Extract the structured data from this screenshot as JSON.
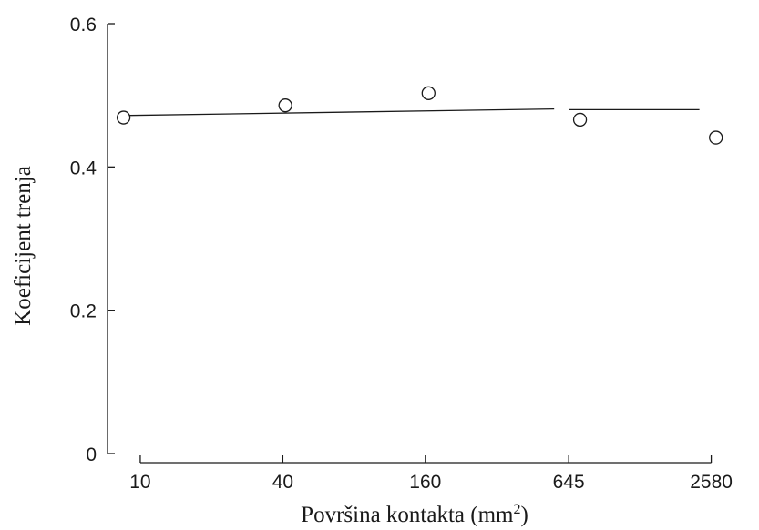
{
  "chart_data": {
    "type": "scatter",
    "title": "",
    "xlabel": "Površina kontakta (mm",
    "xlabel_sup": "2",
    "xlabel_suffix": ")",
    "ylabel": "Koeficijent trenja",
    "x_scale": "log",
    "xticks": [
      10,
      40,
      160,
      645,
      2580
    ],
    "xtick_labels": [
      "10",
      "40",
      "160",
      "645",
      "2580"
    ],
    "xlim": [
      6.2,
      3500
    ],
    "ylim": [
      0,
      0.6
    ],
    "yticks": [
      0,
      0.2,
      0.4,
      0.6
    ],
    "ytick_labels": [
      "0",
      "0.2",
      "0.4",
      "0.6"
    ],
    "grid": false,
    "series": [
      {
        "points": [
          {
            "x": 8.5,
            "y": 0.469
          },
          {
            "x": 41,
            "y": 0.486
          },
          {
            "x": 165,
            "y": 0.503
          },
          {
            "x": 720,
            "y": 0.466
          },
          {
            "x": 2700,
            "y": 0.441
          }
        ]
      }
    ],
    "trend_lines": [
      {
        "x": [
          9,
          560
        ],
        "y": [
          0.472,
          0.481
        ]
      },
      {
        "x": 650,
        "x_end": 2300,
        "y": [
          0.48,
          0.48
        ]
      }
    ]
  }
}
